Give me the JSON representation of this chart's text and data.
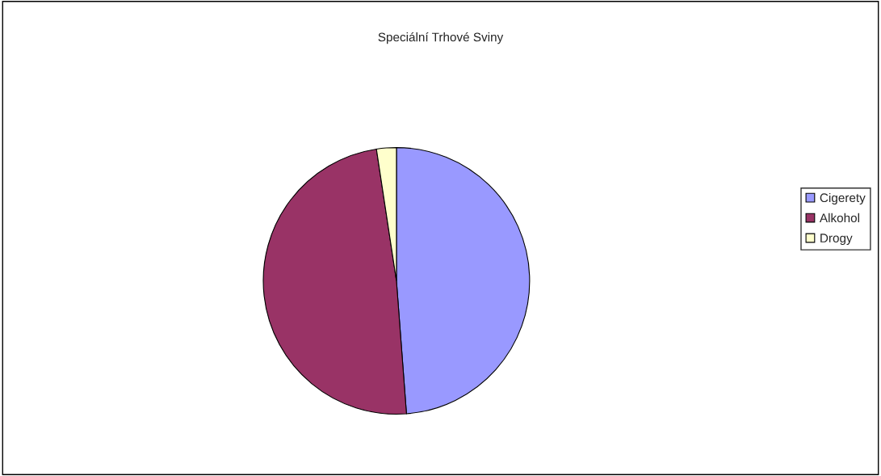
{
  "chart_data": {
    "type": "pie",
    "title": "Speciální Trhové Sviny",
    "categories": [
      "Cigerety",
      "Alkohol",
      "Drogy"
    ],
    "values": [
      48.8,
      48.8,
      2.4
    ],
    "colors": [
      "#9999ff",
      "#993366",
      "#ffffcc"
    ],
    "legend": "right"
  }
}
